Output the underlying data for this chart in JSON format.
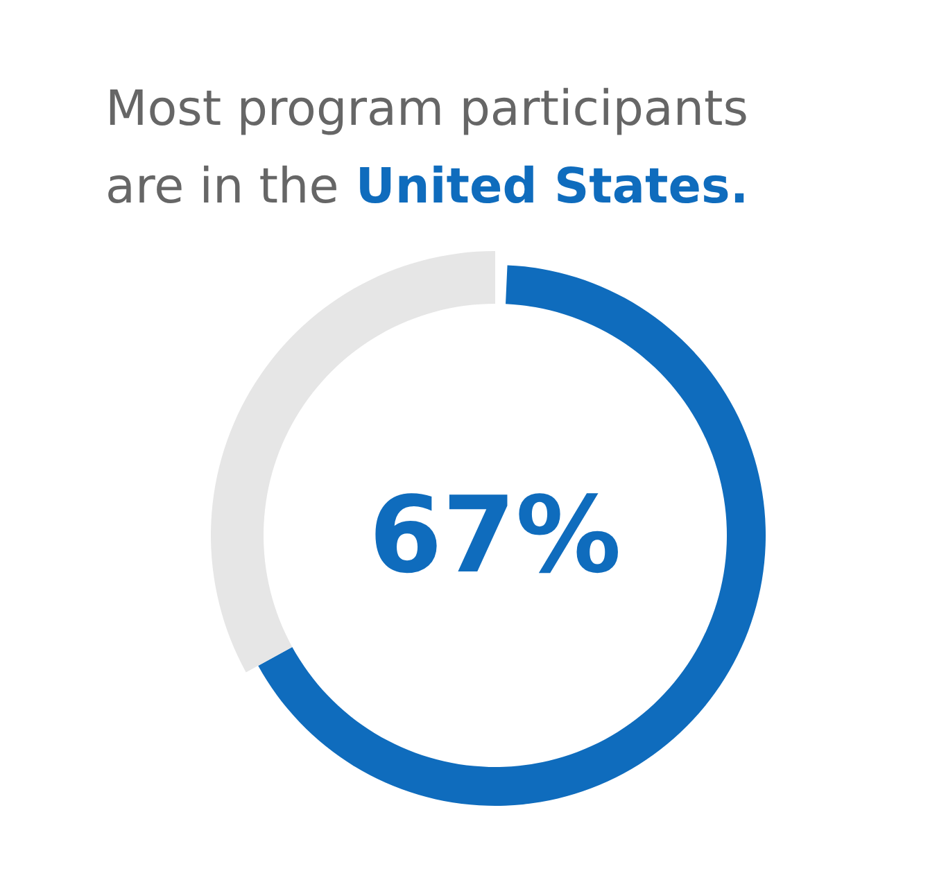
{
  "chart_data": {
    "type": "donut",
    "title": "Most program participants are in the United States.",
    "categories": [
      null,
      null
    ],
    "values": [
      67,
      33
    ],
    "colors": [
      "#0f6cbd",
      "#e6e6e6"
    ],
    "value_labels": [
      "67%",
      null
    ]
  }
}
